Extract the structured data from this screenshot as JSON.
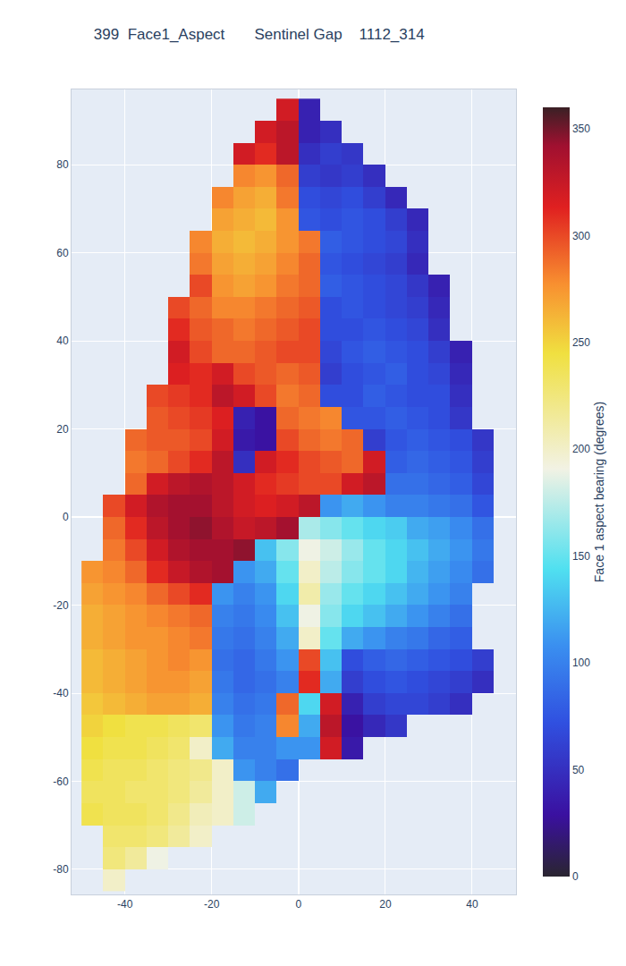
{
  "chart_data": {
    "type": "heatmap",
    "title": "399  Face1_Aspect       Sentinel Gap    1112_314",
    "x": [
      -47.5,
      -42.5,
      -37.5,
      -32.5,
      -27.5,
      -22.5,
      -17.5,
      -12.5,
      -7.5,
      -2.5,
      2.5,
      7.5,
      12.5,
      17.5,
      22.5,
      27.5,
      32.5,
      37.5,
      42.5,
      47.5
    ],
    "y": [
      92.5,
      87.5,
      82.5,
      77.5,
      72.5,
      67.5,
      62.5,
      57.5,
      52.5,
      47.5,
      42.5,
      37.5,
      32.5,
      27.5,
      22.5,
      17.5,
      12.5,
      7.5,
      2.5,
      -2.5,
      -7.5,
      -12.5,
      -17.5,
      -22.5,
      -27.5,
      -32.5,
      -37.5,
      -42.5,
      -47.5,
      -52.5,
      -57.5,
      -62.5,
      -67.5,
      -72.5,
      -77.5,
      -82.5
    ],
    "z": [
      [
        null,
        null,
        null,
        null,
        null,
        null,
        null,
        null,
        null,
        320,
        40,
        null,
        null,
        null,
        null,
        null,
        null,
        null,
        null,
        null
      ],
      [
        null,
        null,
        null,
        null,
        null,
        null,
        null,
        null,
        320,
        330,
        40,
        50,
        null,
        null,
        null,
        null,
        null,
        null,
        null,
        null
      ],
      [
        null,
        null,
        null,
        null,
        null,
        null,
        null,
        320,
        310,
        330,
        50,
        60,
        55,
        null,
        null,
        null,
        null,
        null,
        null,
        null
      ],
      [
        null,
        null,
        null,
        null,
        null,
        null,
        null,
        280,
        275,
        290,
        60,
        55,
        60,
        50,
        null,
        null,
        null,
        null,
        null,
        null
      ],
      [
        null,
        null,
        null,
        null,
        null,
        null,
        280,
        270,
        265,
        285,
        70,
        65,
        70,
        60,
        45,
        null,
        null,
        null,
        null,
        null
      ],
      [
        null,
        null,
        null,
        null,
        null,
        null,
        270,
        265,
        260,
        275,
        75,
        70,
        75,
        70,
        60,
        45,
        null,
        null,
        null,
        null
      ],
      [
        null,
        null,
        null,
        null,
        null,
        280,
        265,
        260,
        265,
        275,
        285,
        80,
        75,
        70,
        65,
        50,
        null,
        null,
        null,
        null
      ],
      [
        null,
        null,
        null,
        null,
        null,
        285,
        270,
        265,
        270,
        280,
        290,
        75,
        70,
        65,
        60,
        45,
        null,
        null,
        null,
        null
      ],
      [
        null,
        null,
        null,
        null,
        null,
        300,
        275,
        270,
        275,
        285,
        290,
        80,
        75,
        70,
        65,
        55,
        40,
        null,
        null,
        null
      ],
      [
        null,
        null,
        null,
        null,
        300,
        290,
        280,
        280,
        285,
        290,
        295,
        70,
        75,
        70,
        65,
        60,
        45,
        null,
        null,
        null
      ],
      [
        null,
        null,
        null,
        null,
        310,
        295,
        290,
        285,
        290,
        295,
        300,
        70,
        70,
        75,
        70,
        65,
        50,
        null,
        null,
        null
      ],
      [
        null,
        null,
        null,
        null,
        320,
        300,
        290,
        290,
        295,
        300,
        300,
        65,
        75,
        80,
        75,
        70,
        60,
        40,
        null,
        null
      ],
      [
        null,
        null,
        null,
        null,
        315,
        310,
        320,
        300,
        295,
        290,
        295,
        60,
        70,
        75,
        80,
        70,
        65,
        45,
        null,
        null
      ],
      [
        null,
        null,
        null,
        300,
        305,
        310,
        330,
        320,
        300,
        285,
        290,
        70,
        70,
        80,
        75,
        70,
        70,
        50,
        null,
        null
      ],
      [
        null,
        null,
        null,
        295,
        300,
        305,
        315,
        40,
        30,
        290,
        285,
        280,
        75,
        75,
        80,
        75,
        70,
        55,
        null,
        null
      ],
      [
        null,
        null,
        290,
        295,
        295,
        300,
        320,
        35,
        30,
        300,
        290,
        285,
        290,
        60,
        75,
        80,
        75,
        70,
        55,
        null
      ],
      [
        null,
        null,
        285,
        290,
        300,
        310,
        330,
        50,
        320,
        310,
        300,
        295,
        290,
        320,
        80,
        85,
        80,
        75,
        60,
        null
      ],
      [
        null,
        null,
        290,
        320,
        330,
        335,
        330,
        320,
        310,
        305,
        300,
        300,
        320,
        330,
        90,
        90,
        85,
        80,
        65,
        null
      ],
      [
        null,
        300,
        320,
        335,
        340,
        340,
        330,
        320,
        315,
        320,
        330,
        110,
        120,
        110,
        100,
        100,
        95,
        90,
        75,
        null
      ],
      [
        null,
        290,
        310,
        330,
        340,
        345,
        335,
        325,
        330,
        340,
        170,
        160,
        150,
        140,
        135,
        120,
        115,
        105,
        90,
        null
      ],
      [
        null,
        285,
        300,
        320,
        335,
        340,
        340,
        345,
        130,
        160,
        190,
        180,
        165,
        150,
        140,
        130,
        120,
        110,
        95,
        null
      ],
      [
        275,
        280,
        290,
        310,
        325,
        335,
        340,
        110,
        120,
        150,
        200,
        175,
        160,
        150,
        140,
        125,
        115,
        105,
        90,
        null
      ],
      [
        270,
        275,
        280,
        290,
        300,
        310,
        110,
        100,
        110,
        140,
        210,
        165,
        150,
        140,
        130,
        120,
        110,
        100,
        null,
        null
      ],
      [
        265,
        270,
        275,
        280,
        285,
        290,
        100,
        95,
        105,
        130,
        190,
        160,
        140,
        130,
        120,
        110,
        100,
        90,
        null,
        null
      ],
      [
        265,
        270,
        275,
        275,
        280,
        285,
        95,
        90,
        100,
        120,
        200,
        150,
        120,
        110,
        100,
        95,
        85,
        80,
        null,
        null
      ],
      [
        260,
        265,
        270,
        275,
        280,
        275,
        90,
        85,
        95,
        110,
        300,
        130,
        70,
        80,
        85,
        80,
        75,
        70,
        60,
        null
      ],
      [
        260,
        265,
        270,
        275,
        275,
        270,
        95,
        85,
        90,
        100,
        310,
        120,
        60,
        70,
        75,
        70,
        65,
        60,
        50,
        null
      ],
      [
        255,
        260,
        265,
        270,
        270,
        265,
        100,
        90,
        95,
        290,
        140,
        320,
        40,
        60,
        65,
        65,
        60,
        50,
        null,
        null
      ],
      [
        250,
        245,
        240,
        240,
        235,
        230,
        110,
        95,
        100,
        280,
        120,
        330,
        30,
        45,
        55,
        null,
        null,
        null,
        null,
        null
      ],
      [
        245,
        240,
        240,
        235,
        230,
        200,
        120,
        100,
        100,
        110,
        110,
        320,
        35,
        null,
        null,
        null,
        null,
        null,
        null,
        null
      ],
      [
        240,
        235,
        235,
        230,
        225,
        220,
        200,
        110,
        100,
        90,
        null,
        null,
        null,
        null,
        null,
        null,
        null,
        null,
        null,
        null
      ],
      [
        235,
        235,
        230,
        230,
        225,
        215,
        200,
        180,
        120,
        null,
        null,
        null,
        null,
        null,
        null,
        null,
        null,
        null,
        null,
        null
      ],
      [
        240,
        235,
        235,
        230,
        220,
        205,
        200,
        180,
        null,
        null,
        null,
        null,
        null,
        null,
        null,
        null,
        null,
        null,
        null,
        null
      ],
      [
        null,
        230,
        230,
        225,
        215,
        200,
        null,
        null,
        null,
        null,
        null,
        null,
        null,
        null,
        null,
        null,
        null,
        null,
        null,
        null
      ],
      [
        null,
        225,
        215,
        190,
        null,
        null,
        null,
        null,
        null,
        null,
        null,
        null,
        null,
        null,
        null,
        null,
        null,
        null,
        null,
        null
      ],
      [
        null,
        200,
        null,
        null,
        null,
        null,
        null,
        null,
        null,
        null,
        null,
        null,
        null,
        null,
        null,
        null,
        null,
        null,
        null,
        null
      ]
    ],
    "xlim": [
      -52.3,
      50.1
    ],
    "ylim": [
      -85.7,
      97.1
    ],
    "xticks": [
      -40,
      -20,
      0,
      20,
      40
    ],
    "yticks": [
      -80,
      -60,
      -40,
      -20,
      0,
      20,
      40,
      60,
      80
    ],
    "grid": true,
    "colorbar": {
      "title": "Face 1 aspect bearing (degrees)",
      "range": [
        0,
        360
      ],
      "ticks": [
        0,
        50,
        100,
        150,
        200,
        250,
        300,
        350
      ]
    }
  }
}
